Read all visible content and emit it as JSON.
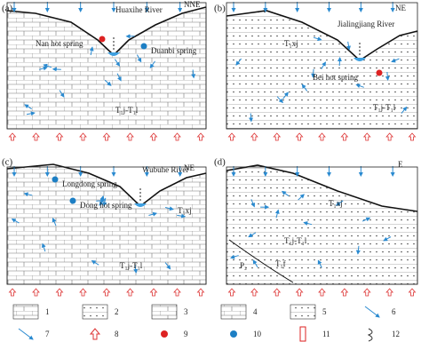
{
  "panels": [
    {
      "label": "(a)",
      "direction": "NNE",
      "river": "Huaxihe River",
      "springs": [
        "Nan hot spring",
        "Duanbi spring"
      ],
      "formations": [
        "T₁j-T₁l"
      ]
    },
    {
      "label": "(b)",
      "direction": "NE",
      "river": "Jialingjiang River",
      "springs": [
        "Bei hot spring"
      ],
      "formations": [
        "T₁xj",
        "T₁j-T₁l"
      ]
    },
    {
      "label": "(c)",
      "direction": "NE",
      "river": "Wubuhe River",
      "springs": [
        "Longdong spring",
        "Dong hot spring"
      ],
      "formations": [
        "T₁xj",
        "T₁j-T₁l"
      ]
    },
    {
      "label": "(d)",
      "direction": "E",
      "formations": [
        "T₁xj",
        "T₁j-T₁l",
        "T₁f",
        "P₂"
      ]
    }
  ],
  "legend": [
    "1",
    "2",
    "3",
    "4",
    "5",
    "6",
    "7",
    "8",
    "9",
    "10",
    "11",
    "12"
  ]
}
